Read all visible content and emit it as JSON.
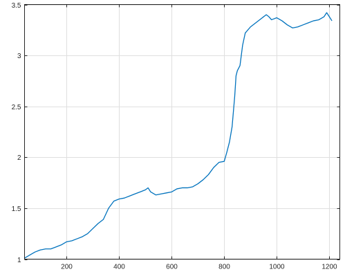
{
  "chart_data": {
    "type": "line",
    "title": "",
    "xlabel": "",
    "ylabel": "",
    "xlim": [
      40,
      1240
    ],
    "ylim": [
      1,
      3.5
    ],
    "xticks": [
      200,
      400,
      600,
      800,
      1000,
      1200
    ],
    "xtick_labels": [
      "200",
      "400",
      "600",
      "800",
      "1000",
      "1200"
    ],
    "yticks": [
      1,
      1.5,
      2,
      2.5,
      3,
      3.5
    ],
    "ytick_labels": [
      "1",
      "1.5",
      "2",
      "2.5",
      "3",
      "3.5"
    ],
    "grid": true,
    "colors": {
      "series": "#0072BD",
      "grid": "#dfdfdf",
      "axis": "#262626"
    },
    "series": [
      {
        "x": [
          40,
          60,
          80,
          100,
          120,
          140,
          160,
          180,
          200,
          220,
          240,
          260,
          280,
          300,
          320,
          340,
          360,
          380,
          400,
          420,
          440,
          460,
          480,
          500,
          510,
          520,
          540,
          560,
          580,
          600,
          620,
          640,
          660,
          680,
          700,
          720,
          740,
          760,
          780,
          800,
          810,
          820,
          830,
          840,
          845,
          850,
          860,
          870,
          880,
          900,
          920,
          940,
          960,
          970,
          980,
          1000,
          1020,
          1040,
          1060,
          1080,
          1100,
          1120,
          1140,
          1160,
          1180,
          1190,
          1200,
          1210
        ],
        "y": [
          1.01,
          1.04,
          1.07,
          1.09,
          1.1,
          1.1,
          1.12,
          1.14,
          1.17,
          1.18,
          1.2,
          1.22,
          1.25,
          1.3,
          1.35,
          1.39,
          1.5,
          1.57,
          1.59,
          1.6,
          1.62,
          1.64,
          1.66,
          1.68,
          1.7,
          1.66,
          1.63,
          1.64,
          1.65,
          1.66,
          1.69,
          1.7,
          1.7,
          1.71,
          1.74,
          1.78,
          1.83,
          1.9,
          1.95,
          1.96,
          2.05,
          2.15,
          2.3,
          2.6,
          2.8,
          2.85,
          2.9,
          3.1,
          3.22,
          3.28,
          3.32,
          3.36,
          3.4,
          3.38,
          3.35,
          3.37,
          3.34,
          3.3,
          3.27,
          3.28,
          3.3,
          3.32,
          3.34,
          3.35,
          3.38,
          3.42,
          3.38,
          3.34
        ]
      }
    ]
  }
}
